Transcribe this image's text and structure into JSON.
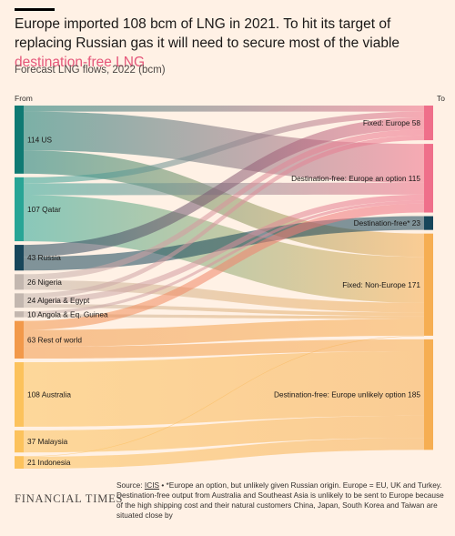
{
  "title_main": "Europe imported 108 bcm of LNG in 2021. To hit its target of replacing Russian gas it will need to secure most of the viable ",
  "title_highlight": "destination-free LNG",
  "subtitle": "Forecast LNG flows, 2022 (bcm)",
  "axis_from": "From",
  "axis_to": "To",
  "sources": [
    {
      "id": "us",
      "label": "114 US",
      "value": 114,
      "color": "#0f7a73"
    },
    {
      "id": "qatar",
      "label": "107 Qatar",
      "value": 107,
      "color": "#28a596"
    },
    {
      "id": "russia",
      "label": "43 Russia",
      "value": 43,
      "color": "#17465a"
    },
    {
      "id": "nigeria",
      "label": "26 Nigeria",
      "value": 26,
      "color": "#c3b7af"
    },
    {
      "id": "algeria",
      "label": "24 Algeria & Egypt",
      "value": 24,
      "color": "#c3b7af"
    },
    {
      "id": "angola",
      "label": "10 Angola & Eq. Guinea",
      "value": 10,
      "color": "#c3b7af"
    },
    {
      "id": "row",
      "label": "63 Rest of world",
      "value": 63,
      "color": "#f2994a"
    },
    {
      "id": "australia",
      "label": "108 Australia",
      "value": 108,
      "color": "#fcc25c"
    },
    {
      "id": "malaysia",
      "label": "37 Malaysia",
      "value": 37,
      "color": "#fcc25c"
    },
    {
      "id": "indonesia",
      "label": "21 Indonesia",
      "value": 21,
      "color": "#fcc25c"
    }
  ],
  "targets": [
    {
      "id": "fixed_eu",
      "label": "Fixed: Europe 58",
      "value": 58,
      "color": "#ef6f8a"
    },
    {
      "id": "df_eu",
      "label": "Destination-free: Europe an option 115",
      "value": 115,
      "color": "#ef6f8a"
    },
    {
      "id": "df_ast",
      "label": "Destination-free* 23",
      "value": 23,
      "color": "#17465a"
    },
    {
      "id": "fixed_non",
      "label": "Fixed: Non-Europe 171",
      "value": 171,
      "color": "#f6ae52"
    },
    {
      "id": "df_unl",
      "label": "Destination-free: Europe unlikely option 185",
      "value": 185,
      "color": "#f6ae52"
    }
  ],
  "flows": [
    {
      "from": "us",
      "to": "fixed_eu",
      "value": 10
    },
    {
      "from": "us",
      "to": "df_eu",
      "value": 65
    },
    {
      "from": "us",
      "to": "fixed_non",
      "value": 39
    },
    {
      "from": "qatar",
      "to": "fixed_eu",
      "value": 10
    },
    {
      "from": "qatar",
      "to": "df_eu",
      "value": 20
    },
    {
      "from": "qatar",
      "to": "fixed_non",
      "value": 77
    },
    {
      "from": "russia",
      "to": "fixed_eu",
      "value": 20
    },
    {
      "from": "russia",
      "to": "df_ast",
      "value": 23
    },
    {
      "from": "nigeria",
      "to": "fixed_eu",
      "value": 10
    },
    {
      "from": "nigeria",
      "to": "fixed_non",
      "value": 16
    },
    {
      "from": "algeria",
      "to": "fixed_eu",
      "value": 8
    },
    {
      "from": "algeria",
      "to": "df_eu",
      "value": 10
    },
    {
      "from": "algeria",
      "to": "fixed_non",
      "value": 6
    },
    {
      "from": "angola",
      "to": "df_eu",
      "value": 5
    },
    {
      "from": "angola",
      "to": "fixed_non",
      "value": 5
    },
    {
      "from": "row",
      "to": "df_eu",
      "value": 15
    },
    {
      "from": "row",
      "to": "fixed_non",
      "value": 28
    },
    {
      "from": "row",
      "to": "df_unl",
      "value": 20
    },
    {
      "from": "australia",
      "to": "df_unl",
      "value": 108
    },
    {
      "from": "malaysia",
      "to": "df_unl",
      "value": 37
    },
    {
      "from": "indonesia",
      "to": "df_unl",
      "value": 20
    },
    {
      "from": "indonesia",
      "to": "fixed_non",
      "value": 1
    }
  ],
  "logo": "FINANCIAL TIMES",
  "source_prefix": "Source: ",
  "source_link": "ICIS",
  "source_rest": " • *Europe an option, but unlikely given Russian origin. Europe = EU, UK and Turkey. Destination-free output from Australia and Southeast Asia is unlikely to be sent to Europe because of the high shipping cost and their natural customers China, Japan, South Korea and Taiwan are situated close by"
}
